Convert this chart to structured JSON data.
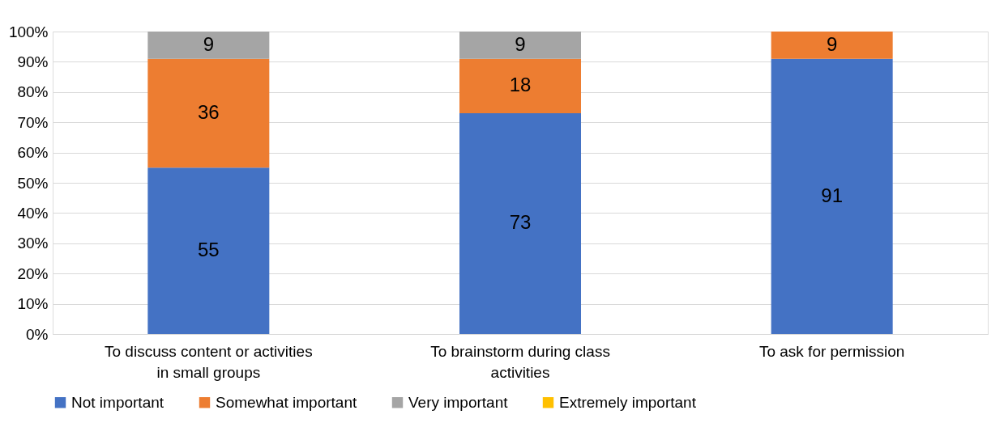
{
  "chart_data": {
    "type": "bar",
    "stacked": true,
    "categories": [
      "To discuss content or activities in small groups",
      "To brainstorm during class activities",
      "To ask for permission"
    ],
    "series": [
      {
        "name": "Not important",
        "color": "#4472c4",
        "values": [
          55,
          73,
          91
        ],
        "value_labels": [
          "55",
          "73",
          "91"
        ]
      },
      {
        "name": "Somewhat important",
        "color": "#ed7d31",
        "values": [
          36,
          18,
          9
        ],
        "value_labels": [
          "36",
          "18",
          "9"
        ]
      },
      {
        "name": "Very important",
        "color": "#a5a5a5",
        "values": [
          9,
          9,
          0
        ],
        "value_labels": [
          "9",
          "9",
          null
        ]
      },
      {
        "name": "Extremely important",
        "color": "#ffc000",
        "values": [
          0,
          0,
          0
        ],
        "value_labels": [
          null,
          null,
          null
        ]
      }
    ],
    "ylim": [
      0,
      100
    ],
    "yticks": [
      {
        "value": 0,
        "label": "0%"
      },
      {
        "value": 10,
        "label": "10%"
      },
      {
        "value": 20,
        "label": "20%"
      },
      {
        "value": 30,
        "label": "30%"
      },
      {
        "value": 40,
        "label": "40%"
      },
      {
        "value": 50,
        "label": "50%"
      },
      {
        "value": 60,
        "label": "60%"
      },
      {
        "value": 70,
        "label": "70%"
      },
      {
        "value": 80,
        "label": "80%"
      },
      {
        "value": 90,
        "label": "90%"
      },
      {
        "value": 100,
        "label": "100%"
      }
    ],
    "grid": "y",
    "legend": "bottom"
  }
}
